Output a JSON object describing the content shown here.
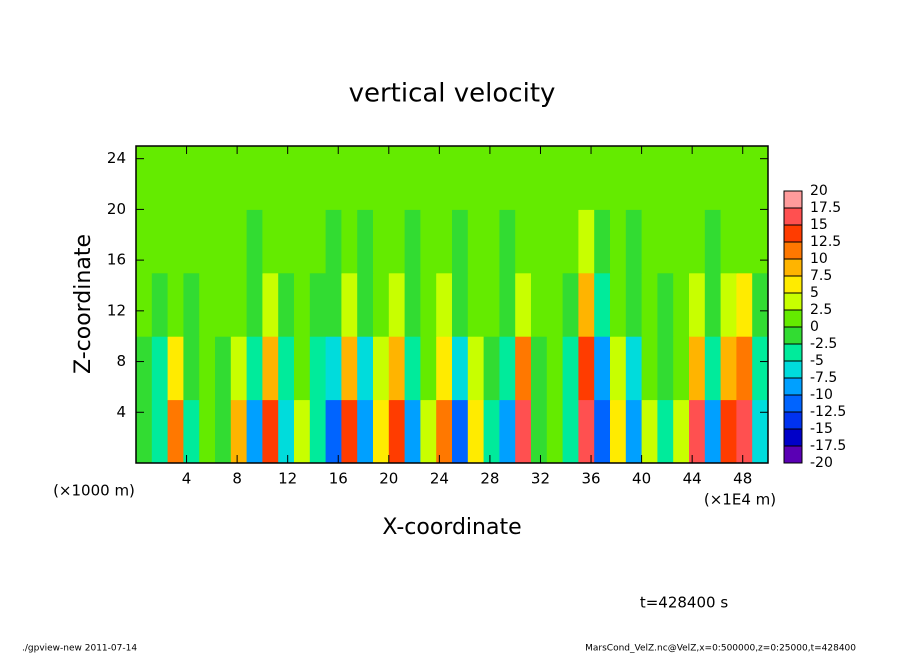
{
  "chart_data": {
    "type": "heatmap",
    "title": "vertical velocity",
    "xlabel": "X-coordinate",
    "ylabel": "Z-coordinate",
    "xunit": "(×1E4 m)",
    "yunit": "(×1000 m)",
    "xlim": [
      0,
      50
    ],
    "ylim": [
      0,
      25
    ],
    "xticks": [
      4,
      8,
      12,
      16,
      20,
      24,
      28,
      32,
      36,
      40,
      44,
      48
    ],
    "yticks": [
      4,
      8,
      12,
      16,
      20,
      24
    ],
    "xbins": [
      0,
      1.25,
      2.5,
      3.75,
      5,
      6.25,
      7.5,
      8.75,
      10,
      11.25,
      12.5,
      13.75,
      15,
      16.25,
      17.5,
      18.75,
      20,
      21.25,
      22.5,
      23.75,
      25,
      26.25,
      27.5,
      28.75,
      30,
      31.25,
      32.5,
      33.75,
      35,
      36.25,
      37.5,
      38.75,
      40,
      41.25,
      42.5,
      43.75,
      45,
      46.25,
      47.5,
      48.75,
      50
    ],
    "ybins": [
      0,
      5,
      10,
      15,
      20,
      25
    ],
    "values": [
      [
        -2,
        -5,
        12,
        -3,
        2,
        -2,
        8,
        -8,
        14,
        -7,
        3,
        -5,
        -12,
        13,
        -10,
        5,
        14,
        -8,
        3,
        12,
        -12,
        5,
        -3,
        -8,
        15,
        -2,
        2,
        -5,
        16,
        -12,
        5,
        -10,
        3,
        -3,
        4,
        15,
        -8,
        13,
        15,
        -6
      ],
      [
        -1,
        -3,
        7,
        -2,
        1,
        -1,
        4,
        -5,
        8,
        -4,
        2,
        -3,
        -7,
        8,
        -6,
        3,
        8,
        -5,
        2,
        7,
        -7,
        3,
        -2,
        -5,
        10,
        -1,
        1,
        -3,
        13,
        -8,
        3,
        -6,
        2,
        -2,
        2,
        9,
        -5,
        8,
        10,
        -4
      ],
      [
        0,
        -1,
        2,
        -1,
        0,
        0,
        1,
        -2,
        3,
        -1,
        1,
        -1,
        -2,
        3,
        -2,
        1,
        3,
        -2,
        1,
        3,
        -2,
        1,
        0,
        -2,
        4,
        0,
        0,
        -1,
        8,
        -3,
        1,
        -2,
        1,
        -1,
        1,
        3,
        -2,
        3,
        5,
        -1
      ],
      [
        0,
        1,
        1,
        0,
        1,
        0,
        1,
        -1,
        1,
        0,
        1,
        0,
        -1,
        1,
        -1,
        1,
        1,
        -1,
        1,
        1,
        -1,
        1,
        0,
        -1,
        2,
        0,
        1,
        0,
        4,
        -1,
        1,
        -1,
        1,
        0,
        1,
        1,
        -1,
        1,
        2,
        0
      ],
      [
        1,
        1,
        1,
        1,
        1,
        1,
        1,
        0,
        1,
        1,
        1,
        1,
        0,
        1,
        0,
        1,
        1,
        0,
        1,
        1,
        0,
        1,
        1,
        0,
        1,
        1,
        1,
        1,
        2,
        0,
        1,
        0,
        1,
        1,
        1,
        1,
        0,
        1,
        1,
        1
      ]
    ],
    "colorbar": {
      "levels": [
        -20,
        -17.5,
        -15,
        -12.5,
        -10,
        -7.5,
        -5,
        -2.5,
        0,
        2.5,
        5,
        7.5,
        10,
        12.5,
        15,
        17.5,
        20
      ],
      "colors": [
        "#5a00b4",
        "#0000c8",
        "#0032f0",
        "#0064ff",
        "#00a0ff",
        "#00dcdc",
        "#00eb9b",
        "#32dc32",
        "#64eb00",
        "#c8ff00",
        "#ffeb00",
        "#ffb400",
        "#ff7800",
        "#ff3c00",
        "#ff5050",
        "#ff9b9b"
      ]
    },
    "annotation": "t=428400 s",
    "footer_left": "./gpview-new   2011-07-14",
    "footer_right": "MarsCond_VelZ.nc@VelZ,x=0:500000,z=0:25000,t=428400"
  }
}
